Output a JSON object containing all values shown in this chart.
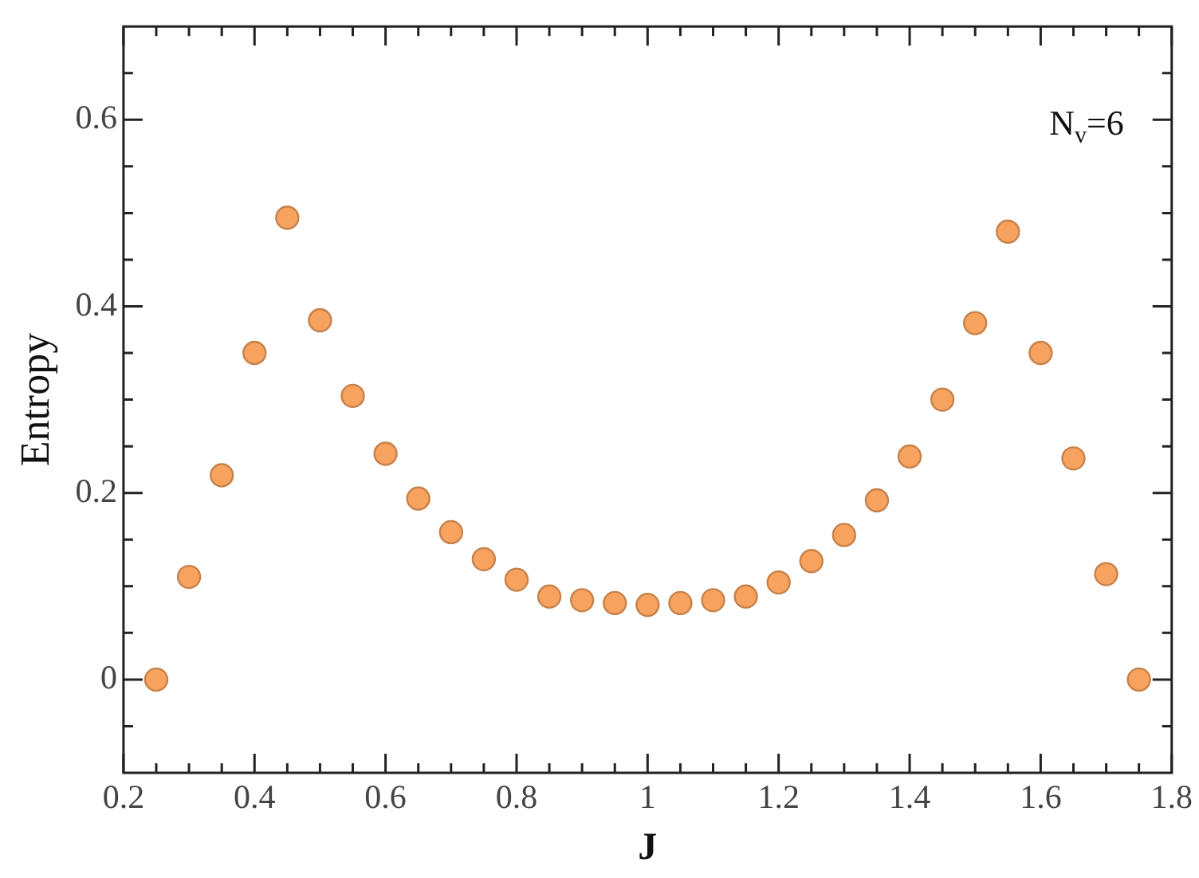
{
  "chart_data": {
    "type": "scatter",
    "xlabel": "J",
    "ylabel": "Entropy",
    "marker": "circle",
    "grid": false,
    "legend": false,
    "annotations": [
      "N$_{v}$=6"
    ],
    "xlim": [
      0.2,
      1.8
    ],
    "ylim": [
      -0.1,
      0.7
    ],
    "xticks": [
      0.2,
      {
        "value": 0.25,
        "label": null
      },
      {
        "value": 0.3,
        "label": null
      },
      {
        "value": 0.35,
        "label": null
      },
      0.4,
      {
        "value": 0.45,
        "label": null
      },
      {
        "value": 0.5,
        "label": null
      },
      {
        "value": 0.55,
        "label": null
      },
      0.6,
      {
        "value": 0.65,
        "label": null
      },
      {
        "value": 0.7,
        "label": null
      },
      {
        "value": 0.75,
        "label": null
      },
      0.8,
      {
        "value": 0.85,
        "label": null
      },
      {
        "value": 0.9,
        "label": null
      },
      {
        "value": 0.95,
        "label": null
      },
      1,
      {
        "value": 1.05,
        "label": null
      },
      {
        "value": 1.1,
        "label": null
      },
      {
        "value": 1.15,
        "label": null
      },
      1.2,
      {
        "value": 1.25,
        "label": null
      },
      {
        "value": 1.3,
        "label": null
      },
      {
        "value": 1.35,
        "label": null
      },
      1.4,
      {
        "value": 1.45,
        "label": null
      },
      {
        "value": 1.5,
        "label": null
      },
      {
        "value": 1.55,
        "label": null
      },
      1.6,
      {
        "value": 1.65,
        "label": null
      },
      {
        "value": 1.7,
        "label": null
      },
      {
        "value": 1.75,
        "label": null
      },
      1.8
    ],
    "yticks": [
      {
        "value": -0.05,
        "label": null
      },
      0,
      {
        "value": 0.05,
        "label": null
      },
      {
        "value": 0.1,
        "label": null
      },
      {
        "value": 0.15,
        "label": null
      },
      0.2,
      {
        "value": 0.25,
        "label": null
      },
      {
        "value": 0.3,
        "label": null
      },
      {
        "value": 0.35,
        "label": null
      },
      0.4,
      {
        "value": 0.45,
        "label": null
      },
      {
        "value": 0.5,
        "label": null
      },
      {
        "value": 0.55,
        "label": null
      },
      0.6,
      {
        "value": 0.65,
        "label": null
      }
    ],
    "series": [
      {
        "color": "#f7a25e",
        "x": [
          0.25,
          0.3,
          0.35,
          0.4,
          0.45,
          0.5,
          0.55,
          0.6,
          0.65,
          0.7,
          0.75,
          0.8,
          0.85,
          0.9,
          0.95,
          1,
          1.05,
          1.1,
          1.15,
          1.2,
          1.25,
          1.3,
          1.35,
          1.4,
          1.45,
          1.5,
          1.55,
          1.6,
          1.65,
          1.7,
          1.75
        ],
        "values": [
          0,
          0.11,
          0.219,
          0.35,
          0.495,
          0.385,
          0.304,
          0.242,
          0.194,
          0.158,
          0.129,
          0.107,
          0.089,
          0.085,
          0.082,
          0.08,
          0.082,
          0.085,
          0.089,
          0.104,
          0.127,
          0.155,
          0.192,
          0.239,
          0.3,
          0.382,
          0.48,
          0.35,
          0.237,
          0.113,
          0
        ]
      }
    ]
  }
}
